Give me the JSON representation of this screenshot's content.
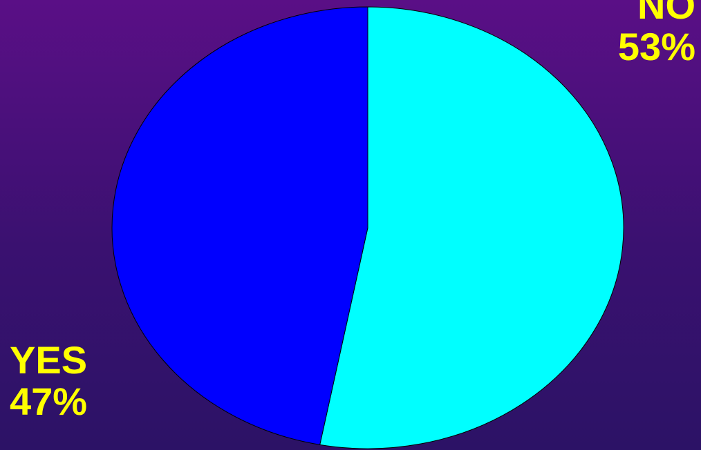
{
  "chart_data": {
    "type": "pie",
    "slices": [
      {
        "label": "NO",
        "value": 53,
        "value_label": "53%",
        "color": "#00ffff"
      },
      {
        "label": "YES",
        "value": 47,
        "value_label": "47%",
        "color": "#0000ff"
      }
    ],
    "background_colors": [
      "#5a0f86",
      "#2c1266"
    ],
    "label_color": "#ffff00"
  }
}
